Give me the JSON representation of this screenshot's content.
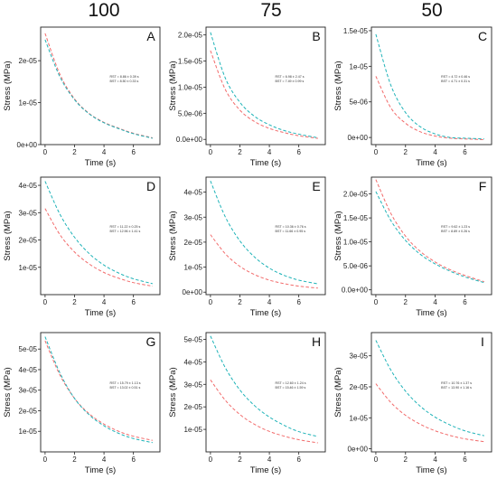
{
  "column_headers": [
    "100",
    "75",
    "50"
  ],
  "colors": {
    "red": "#f26b6b",
    "cyan": "#1fb3b8"
  },
  "chart_data": [
    {
      "type": "line",
      "panel": "A",
      "xlabel": "Time (s)",
      "ylabel": "Stress (MPa)",
      "xlim": [
        -0.3,
        7.8
      ],
      "xticks": [
        0,
        2,
        4,
        6
      ],
      "ylim": [
        0,
        2.8e-05
      ],
      "yticks": [
        0,
        1e-05,
        2e-05
      ],
      "ytick_labels": [
        "0e+00",
        "1e-05",
        "2e-05"
      ],
      "series": [
        {
          "color": "red",
          "x": [
            0,
            1,
            2,
            3,
            4,
            5,
            6,
            7.3
          ],
          "y": [
            2.65e-05,
            1.68e-05,
            1.09e-05,
            7.4e-06,
            5.3e-06,
            3.9e-06,
            2.7e-06,
            1.6e-06
          ]
        },
        {
          "color": "cyan",
          "x": [
            0,
            1,
            2,
            3,
            4,
            5,
            6,
            7.3
          ],
          "y": [
            2.5e-05,
            1.62e-05,
            1.07e-05,
            7.3e-06,
            5.2e-06,
            3.8e-06,
            2.6e-06,
            1.5e-06
          ]
        }
      ],
      "annotation": [
        "RST = 8.86 ± 0.39 s",
        "BST = 8.50 ± 0.33 s"
      ]
    },
    {
      "type": "line",
      "panel": "B",
      "xlabel": "Time (s)",
      "ylabel": "Stress (MPa)",
      "xlim": [
        -0.3,
        7.8
      ],
      "xticks": [
        0,
        2,
        4,
        6
      ],
      "ylim": [
        -1e-06,
        2.15e-05
      ],
      "yticks": [
        0,
        5e-06,
        1e-05,
        1.5e-05,
        2e-05
      ],
      "ytick_labels": [
        "0.0e+00",
        "5.0e-06",
        "1.0e-05",
        "1.5e-05",
        "2.0e-05"
      ],
      "series": [
        {
          "color": "red",
          "x": [
            0,
            1,
            2,
            3,
            4,
            5,
            6,
            7.3
          ],
          "y": [
            1.7e-05,
            9.6e-06,
            5.6e-06,
            3.4e-06,
            2.1e-06,
            1.3e-06,
            7e-07,
            2e-07
          ]
        },
        {
          "color": "cyan",
          "x": [
            0,
            1,
            2,
            3,
            4,
            5,
            6,
            7.3
          ],
          "y": [
            2.05e-05,
            1.18e-05,
            7.1e-06,
            4.4e-06,
            2.8e-06,
            1.7e-06,
            1e-06,
            3e-07
          ]
        }
      ],
      "annotation": [
        "RST = 6.98 ± 2.47 s",
        "BST = 7.49 ± 0.99 s"
      ]
    },
    {
      "type": "line",
      "panel": "C",
      "xlabel": "Time (s)",
      "ylabel": "Stress (MPa)",
      "xlim": [
        -0.3,
        7.8
      ],
      "xticks": [
        0,
        2,
        4,
        6
      ],
      "ylim": [
        -1e-06,
        1.55e-05
      ],
      "yticks": [
        0,
        5e-06,
        1e-05,
        1.5e-05
      ],
      "ytick_labels": [
        "0e+00",
        "5e-06",
        "1e-05",
        "1.5e-05"
      ],
      "series": [
        {
          "color": "red",
          "x": [
            0,
            1,
            2,
            3,
            4,
            5,
            6,
            7.3
          ],
          "y": [
            8.6e-06,
            4.2e-06,
            2e-06,
            8e-07,
            2e-07,
            -1e-07,
            -2e-07,
            -3e-07
          ]
        },
        {
          "color": "cyan",
          "x": [
            0,
            1,
            2,
            3,
            4,
            5,
            6,
            7.3
          ],
          "y": [
            1.45e-05,
            7.4e-06,
            3.5e-06,
            1.5e-06,
            5e-07,
            0,
            -1e-07,
            -2e-07
          ]
        }
      ],
      "annotation": [
        "RST = 4.72 ± 0.46 s",
        "BST = 4.71 ± 0.31 s"
      ]
    },
    {
      "type": "line",
      "panel": "D",
      "xlabel": "Time (s)",
      "ylabel": "Stress (MPa)",
      "xlim": [
        -0.3,
        7.8
      ],
      "xticks": [
        0,
        2,
        4,
        6
      ],
      "ylim": [
        0,
        4.3e-05
      ],
      "yticks": [
        1e-05,
        2e-05,
        3e-05,
        4e-05
      ],
      "ytick_labels": [
        "1e-05",
        "2e-05",
        "3e-05",
        "4e-05"
      ],
      "series": [
        {
          "color": "red",
          "x": [
            0,
            1,
            2,
            3,
            4,
            5,
            6,
            7.3
          ],
          "y": [
            3.15e-05,
            2.2e-05,
            1.56e-05,
            1.12e-05,
            8.1e-06,
            6e-06,
            4.4e-06,
            3.1e-06
          ]
        },
        {
          "color": "cyan",
          "x": [
            0,
            1,
            2,
            3,
            4,
            5,
            6,
            7.3
          ],
          "y": [
            4.15e-05,
            2.95e-05,
            2.1e-05,
            1.5e-05,
            1.08e-05,
            7.9e-06,
            5.8e-06,
            4e-06
          ]
        }
      ],
      "annotation": [
        "RST = 11.22 ± 0.25 s",
        "BST = 12.96 ± 1.41 s"
      ]
    },
    {
      "type": "line",
      "panel": "E",
      "xlabel": "Time (s)",
      "ylabel": "Stress (MPa)",
      "xlim": [
        -0.3,
        7.8
      ],
      "xticks": [
        0,
        2,
        4,
        6
      ],
      "ylim": [
        -1e-06,
        4.6e-05
      ],
      "yticks": [
        0,
        1e-05,
        2e-05,
        3e-05,
        4e-05
      ],
      "ytick_labels": [
        "0e+00",
        "1e-05",
        "2e-05",
        "3e-05",
        "4e-05"
      ],
      "series": [
        {
          "color": "red",
          "x": [
            0,
            1,
            2,
            3,
            4,
            5,
            6,
            7.3
          ],
          "y": [
            2.3e-05,
            1.54e-05,
            1.03e-05,
            7e-06,
            4.8e-06,
            3.4e-06,
            2.4e-06,
            1.6e-06
          ]
        },
        {
          "color": "cyan",
          "x": [
            0,
            1,
            2,
            3,
            4,
            5,
            6,
            7.3
          ],
          "y": [
            4.45e-05,
            3.02e-05,
            2.05e-05,
            1.4e-05,
            9.6e-06,
            6.7e-06,
            4.8e-06,
            3.3e-06
          ]
        }
      ],
      "annotation": [
        "RST = 10.36 ± 0.76 s",
        "BST = 11.66 ± 0.95 s"
      ]
    },
    {
      "type": "line",
      "panel": "F",
      "xlabel": "Time (s)",
      "ylabel": "Stress (MPa)",
      "xlim": [
        -0.3,
        7.8
      ],
      "xticks": [
        0,
        2,
        4,
        6
      ],
      "ylim": [
        -1e-06,
        2.35e-05
      ],
      "yticks": [
        0,
        5e-06,
        1e-05,
        1.5e-05,
        2e-05
      ],
      "ytick_labels": [
        "0.0e+00",
        "5.0e-06",
        "1.0e-05",
        "1.5e-05",
        "2.0e-05"
      ],
      "series": [
        {
          "color": "red",
          "x": [
            0,
            1,
            2,
            3,
            4,
            5,
            6,
            7.3
          ],
          "y": [
            2.3e-05,
            1.6e-05,
            1.12e-05,
            8e-06,
            5.8e-06,
            4.2e-06,
            3e-06,
            1.7e-06
          ]
        },
        {
          "color": "cyan",
          "x": [
            0,
            1,
            2,
            3,
            4,
            5,
            6,
            7.3
          ],
          "y": [
            2.05e-05,
            1.45e-05,
            1.03e-05,
            7.4e-06,
            5.4e-06,
            3.9e-06,
            2.7e-06,
            1.5e-06
          ]
        }
      ],
      "annotation": [
        "RST = 9.62 ± 1.23 s",
        "BST = 8.89 ± 0.26 s"
      ]
    },
    {
      "type": "line",
      "panel": "G",
      "xlabel": "Time (s)",
      "ylabel": "Stress (MPa)",
      "xlim": [
        -0.3,
        7.8
      ],
      "xticks": [
        0,
        2,
        4,
        6
      ],
      "ylim": [
        0,
        5.8e-05
      ],
      "yticks": [
        1e-05,
        2e-05,
        3e-05,
        4e-05,
        5e-05
      ],
      "ytick_labels": [
        "1e-05",
        "2e-05",
        "3e-05",
        "4e-05",
        "5e-05"
      ],
      "series": [
        {
          "color": "red",
          "x": [
            0,
            1,
            2,
            3,
            4,
            5,
            6,
            7.3
          ],
          "y": [
            5.4e-05,
            3.75e-05,
            2.6e-05,
            1.85e-05,
            1.35e-05,
            1e-05,
            7.6e-06,
            5.6e-06
          ]
        },
        {
          "color": "cyan",
          "x": [
            0,
            1,
            2,
            3,
            4,
            5,
            6,
            7.3
          ],
          "y": [
            5.6e-05,
            3.85e-05,
            2.6e-05,
            1.8e-05,
            1.27e-05,
            9e-06,
            6.5e-06,
            4.5e-06
          ]
        }
      ],
      "annotation": [
        "RST = 15.79 ± 1.13 s",
        "BST = 13.02 ± 0.51 s"
      ]
    },
    {
      "type": "line",
      "panel": "H",
      "xlabel": "Time (s)",
      "ylabel": "Stress (MPa)",
      "xlim": [
        -0.3,
        7.8
      ],
      "xticks": [
        0,
        2,
        4,
        6
      ],
      "ylim": [
        0,
        5.3e-05
      ],
      "yticks": [
        1e-05,
        2e-05,
        3e-05,
        4e-05,
        5e-05
      ],
      "ytick_labels": [
        "1e-05",
        "2e-05",
        "3e-05",
        "4e-05",
        "5e-05"
      ],
      "series": [
        {
          "color": "red",
          "x": [
            0,
            1,
            2,
            3,
            4,
            5,
            6,
            7.3
          ],
          "y": [
            3.2e-05,
            2.3e-05,
            1.66e-05,
            1.22e-05,
            9.1e-06,
            7e-06,
            5.4e-06,
            4e-06
          ]
        },
        {
          "color": "cyan",
          "x": [
            0,
            1,
            2,
            3,
            4,
            5,
            6,
            7.3
          ],
          "y": [
            5.15e-05,
            3.75e-05,
            2.75e-05,
            2.05e-05,
            1.55e-05,
            1.18e-05,
            9e-06,
            6.8e-06
          ]
        }
      ],
      "annotation": [
        "RST = 12.60 ± 1.24 s",
        "BST = 15.46 ± 1.59 s"
      ]
    },
    {
      "type": "line",
      "panel": "I",
      "xlabel": "Time (s)",
      "ylabel": "Stress (MPa)",
      "xlim": [
        -0.3,
        7.8
      ],
      "xticks": [
        0,
        2,
        4,
        6
      ],
      "ylim": [
        -1e-06,
        3.75e-05
      ],
      "yticks": [
        0,
        1e-05,
        2e-05,
        3e-05
      ],
      "ytick_labels": [
        "0e+00",
        "1e-05",
        "2e-05",
        "3e-05"
      ],
      "series": [
        {
          "color": "red",
          "x": [
            0,
            1,
            2,
            3,
            4,
            5,
            6,
            7.3
          ],
          "y": [
            2.1e-05,
            1.5e-05,
            1.08e-05,
            7.9e-06,
            5.8e-06,
            4.3e-06,
            3.2e-06,
            2.3e-06
          ]
        },
        {
          "color": "cyan",
          "x": [
            0,
            1,
            2,
            3,
            4,
            5,
            6,
            7.3
          ],
          "y": [
            3.5e-05,
            2.55e-05,
            1.86e-05,
            1.37e-05,
            1.02e-05,
            7.7e-06,
            5.8e-06,
            4.2e-06
          ]
        }
      ],
      "annotation": [
        "RST = 10.76 ± 1.37 s",
        "BST = 13.90 ± 1.16 s"
      ]
    }
  ]
}
